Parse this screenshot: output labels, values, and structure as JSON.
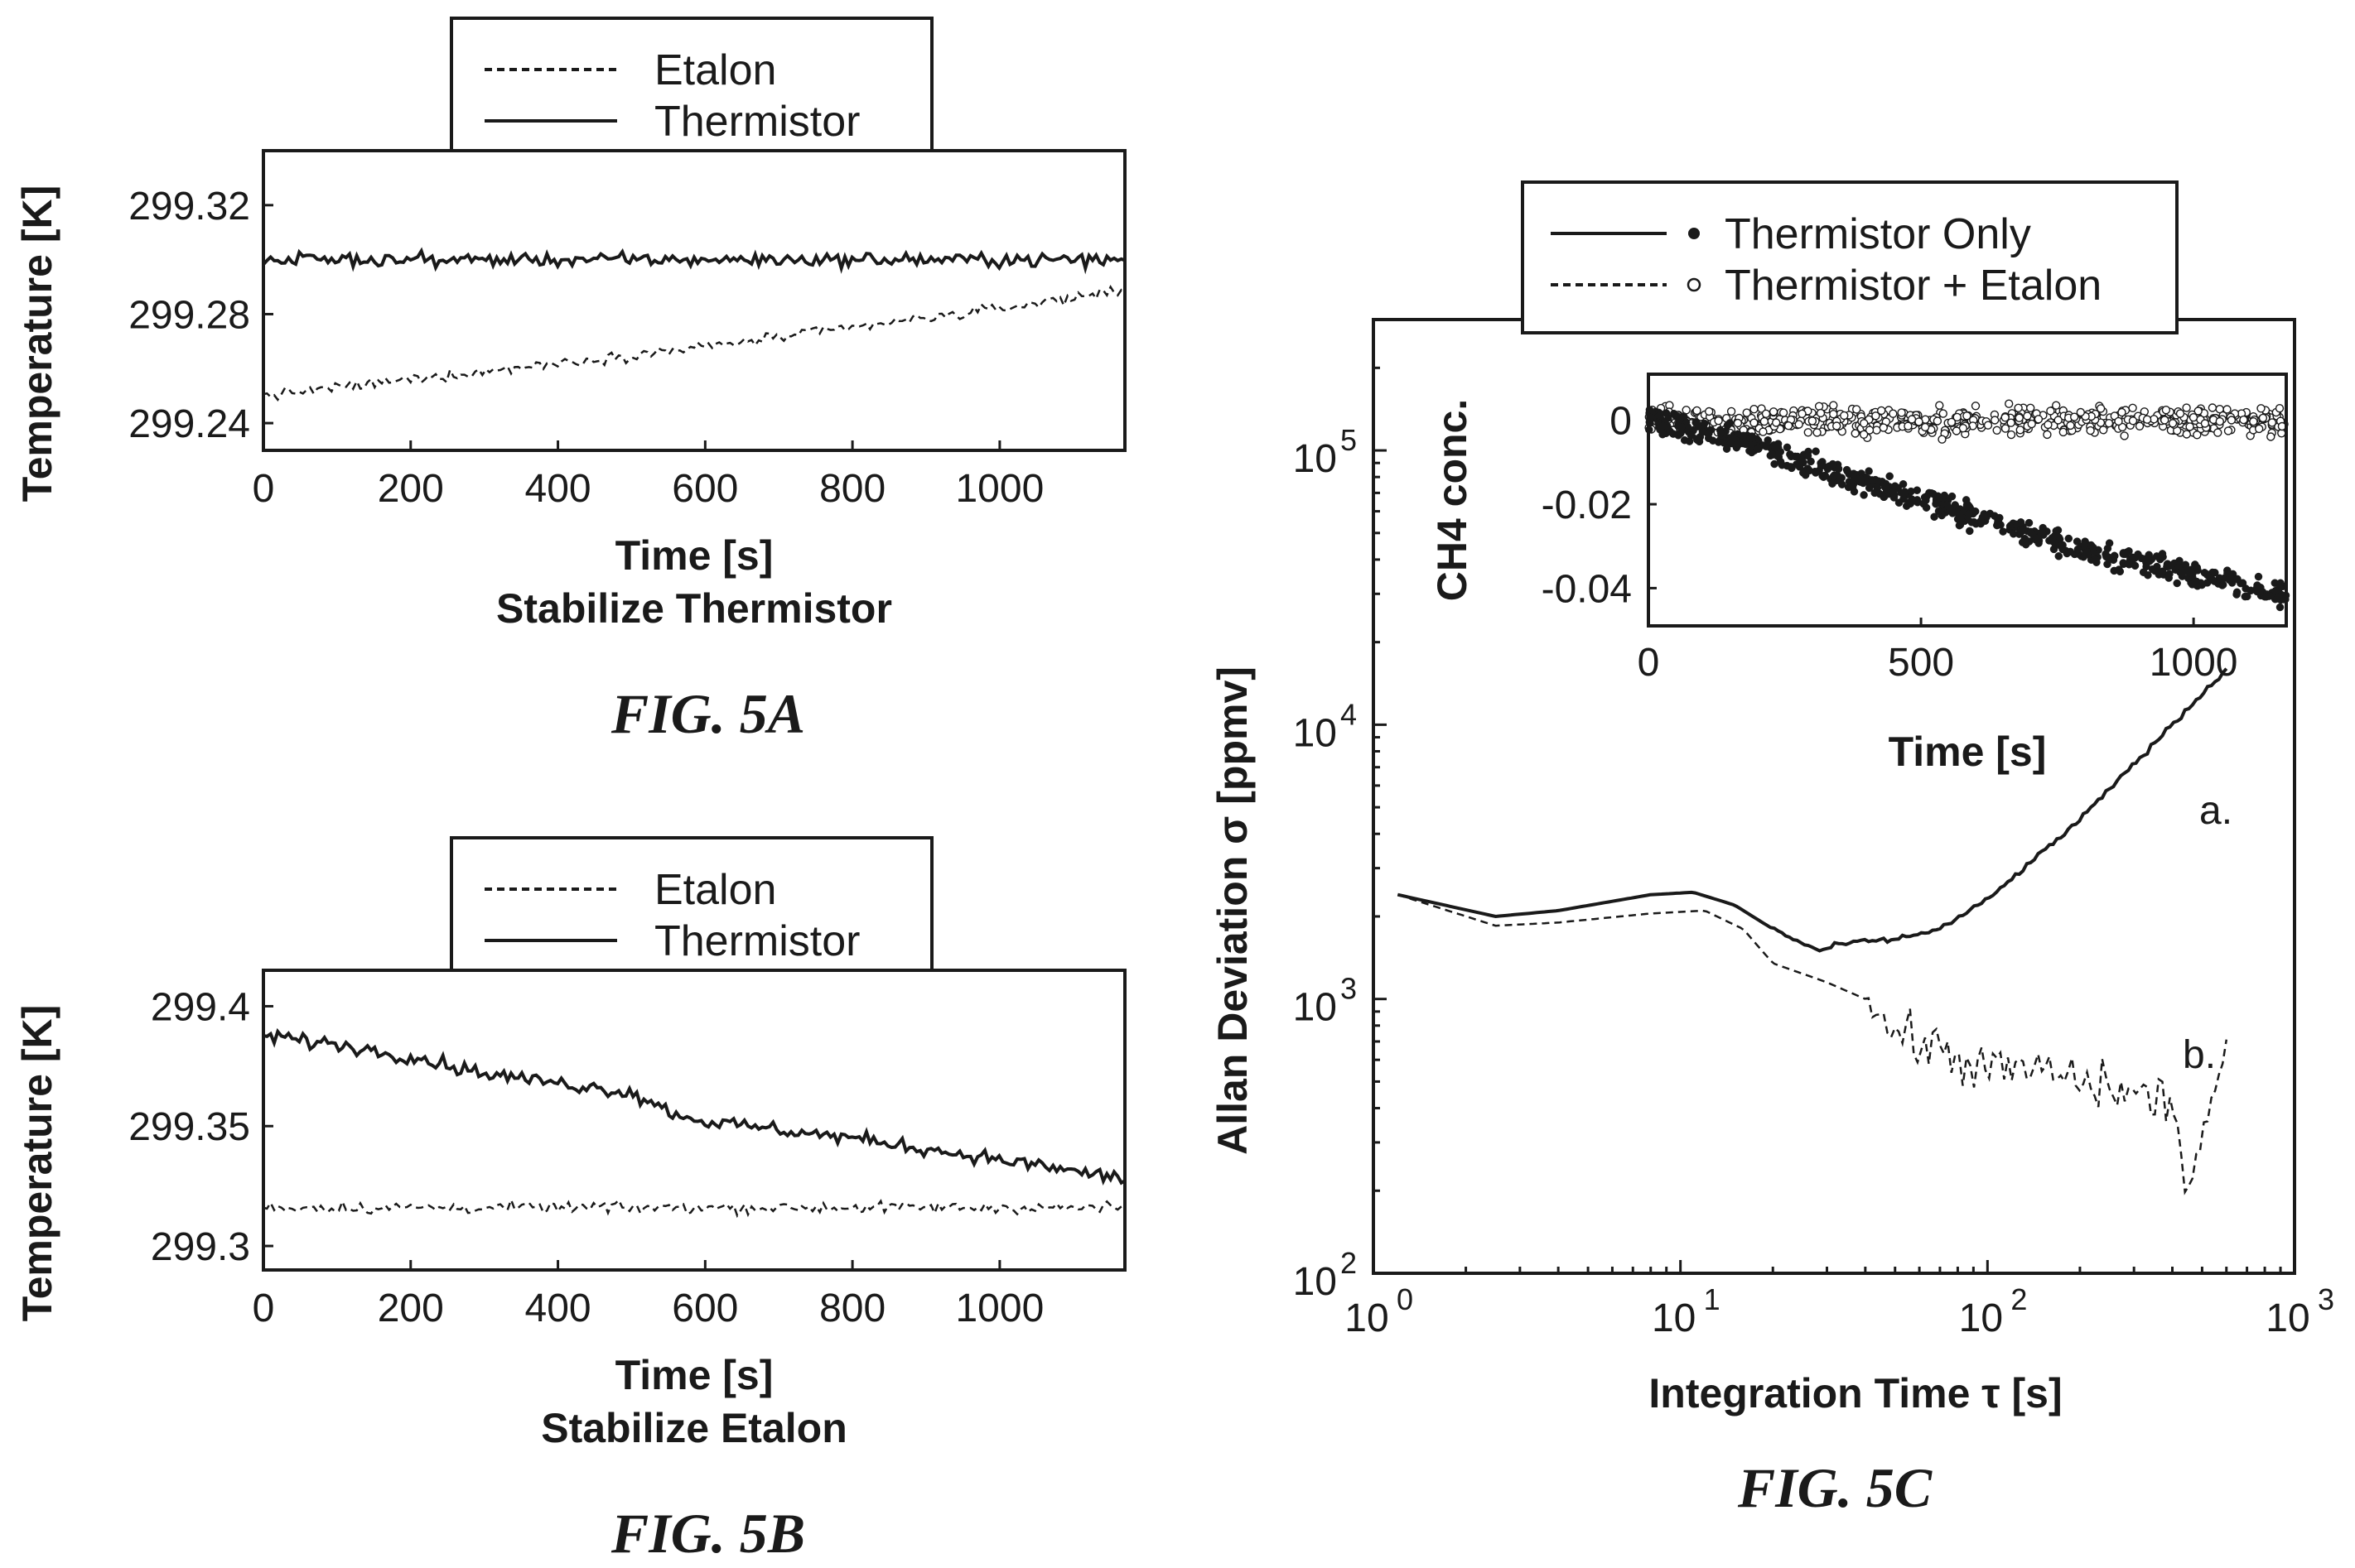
{
  "chart_data": [
    {
      "type": "line",
      "caption": "FIG. 5A",
      "title": "Stabilize Thermistor",
      "xlabel": "Time [s]",
      "ylabel": "Temperature [K]",
      "xlim": [
        0,
        1170
      ],
      "ylim": [
        299.23,
        299.34
      ],
      "xticks": [
        0,
        200,
        400,
        600,
        800,
        1000
      ],
      "xtick_labels": [
        "0",
        "200",
        "400",
        "600",
        "800",
        "1000"
      ],
      "yticks": [
        299.24,
        299.28,
        299.32
      ],
      "ytick_labels": [
        "299.24",
        "299.28",
        "299.32"
      ],
      "legend_position": "top",
      "grid": false,
      "series": [
        {
          "name": "Etalon",
          "style": "dashed",
          "x": [
            0,
            200,
            400,
            600,
            800,
            1000,
            1170
          ],
          "y": [
            299.25,
            299.256,
            299.262,
            299.268,
            299.275,
            299.282,
            299.289
          ],
          "noise": 0.002
        },
        {
          "name": "Thermistor",
          "style": "solid",
          "x": [
            0,
            200,
            400,
            600,
            800,
            1000,
            1170
          ],
          "y": [
            299.3,
            299.3,
            299.3,
            299.3,
            299.3,
            299.3,
            299.3
          ],
          "noise": 0.0025
        }
      ]
    },
    {
      "type": "line",
      "caption": "FIG. 5B",
      "title": "Stabilize Etalon",
      "xlabel": "Time [s]",
      "ylabel": "Temperature [K]",
      "xlim": [
        0,
        1170
      ],
      "ylim": [
        299.29,
        299.415
      ],
      "xticks": [
        0,
        200,
        400,
        600,
        800,
        1000
      ],
      "xtick_labels": [
        "0",
        "200",
        "400",
        "600",
        "800",
        "1000"
      ],
      "yticks": [
        299.3,
        299.35,
        299.4
      ],
      "ytick_labels": [
        "299.3",
        "299.35",
        "299.4"
      ],
      "legend_position": "top",
      "grid": false,
      "series": [
        {
          "name": "Etalon",
          "style": "dashed",
          "x": [
            0,
            200,
            400,
            600,
            800,
            1000,
            1170
          ],
          "y": [
            299.316,
            299.316,
            299.316,
            299.316,
            299.316,
            299.316,
            299.316
          ],
          "noise": 0.0025
        },
        {
          "name": "Thermistor",
          "style": "solid",
          "x": [
            0,
            100,
            200,
            300,
            400,
            500,
            560,
            600,
            800,
            1000,
            1170
          ],
          "y": [
            299.388,
            299.384,
            299.379,
            299.372,
            299.368,
            299.364,
            299.355,
            299.352,
            299.345,
            299.336,
            299.328
          ],
          "noise": 0.003
        }
      ]
    },
    {
      "type": "line",
      "caption": "FIG. 5C",
      "xlabel": "Integration Time  τ [s]",
      "ylabel": "Allan Deviation  σ [ppmv]",
      "xscale": "log",
      "yscale": "log",
      "xlim": [
        1,
        1000
      ],
      "ylim": [
        100,
        300000
      ],
      "xticks": [
        1,
        10,
        100,
        1000
      ],
      "xtick_labels": [
        "10",
        "10",
        "10",
        "10"
      ],
      "xtick_exponents": [
        "0",
        "1",
        "2",
        "3"
      ],
      "yticks": [
        100,
        1000,
        10000,
        100000
      ],
      "ytick_labels": [
        "10",
        "10",
        "10",
        "10"
      ],
      "ytick_exponents": [
        "2",
        "3",
        "4",
        "5"
      ],
      "legend_position": "top",
      "grid": false,
      "series": [
        {
          "name": "Thermistor Only",
          "marker": "filled-circle",
          "style": "solid",
          "annotation": "a.",
          "x": [
            1.2,
            2.5,
            4,
            8,
            11,
            15,
            20,
            28,
            35,
            50,
            70,
            100,
            200,
            400,
            600
          ],
          "y": [
            2400,
            2000,
            2100,
            2400,
            2450,
            2200,
            1800,
            1500,
            1600,
            1650,
            1800,
            2300,
            4500,
            10000,
            16000
          ]
        },
        {
          "name": "Thermistor + Etalon",
          "marker": "open-circle",
          "style": "dashed",
          "annotation": "b.",
          "x": [
            1.2,
            2.5,
            4,
            8,
            12,
            16,
            20,
            30,
            40,
            50,
            70,
            100,
            150,
            200,
            300,
            400,
            450,
            600
          ],
          "y": [
            2400,
            1850,
            1900,
            2050,
            2100,
            1800,
            1350,
            1150,
            1000,
            750,
            650,
            550,
            550,
            500,
            450,
            420,
            200,
            650
          ]
        }
      ],
      "inset": {
        "type": "scatter",
        "xlabel": "Time [s]",
        "ylabel": "CH4 conc.",
        "xlim": [
          0,
          1170
        ],
        "ylim": [
          -0.049,
          0.011
        ],
        "xticks": [
          0,
          500,
          1000
        ],
        "xtick_labels": [
          "0",
          "500",
          "1000"
        ],
        "yticks": [
          0,
          -0.02,
          -0.04
        ],
        "ytick_labels": [
          "0",
          "-0.02",
          "-0.04"
        ],
        "series": [
          {
            "name": "Thermistor Only",
            "marker": "filled-circle",
            "x": [
              0,
              200,
              500,
              800,
              1170
            ],
            "y": [
              0.0,
              -0.006,
              -0.019,
              -0.031,
              -0.042
            ],
            "noise": 0.003,
            "count": 600
          },
          {
            "name": "Thermistor + Etalon",
            "marker": "open-circle",
            "x": [
              0,
              500,
              1170
            ],
            "y": [
              0.0,
              0.0,
              0.0
            ],
            "noise": 0.0035,
            "count": 600
          }
        ]
      }
    }
  ]
}
